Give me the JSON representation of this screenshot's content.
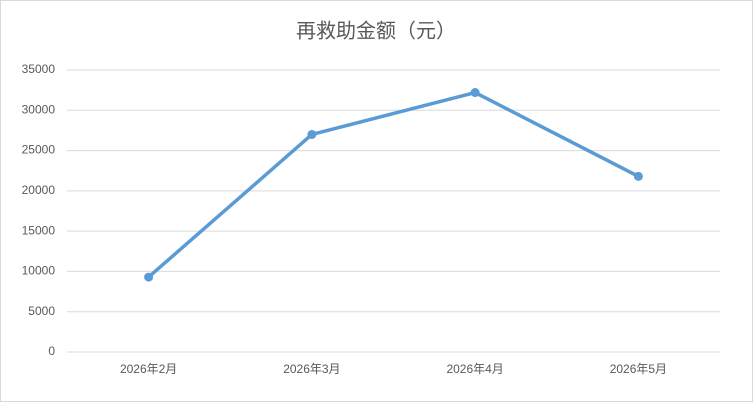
{
  "chart_data": {
    "type": "line",
    "title": "再救助金额（元）",
    "categories": [
      "2026年2月",
      "2026年3月",
      "2026年4月",
      "2026年5月"
    ],
    "series": [
      {
        "name": "再救助金额",
        "color": "#5b9bd5",
        "values": [
          9300,
          27000,
          32200,
          21800
        ]
      }
    ],
    "ylim": [
      0,
      35000
    ],
    "yticks": [
      0,
      5000,
      10000,
      15000,
      20000,
      25000,
      30000,
      35000
    ],
    "grid": true
  }
}
